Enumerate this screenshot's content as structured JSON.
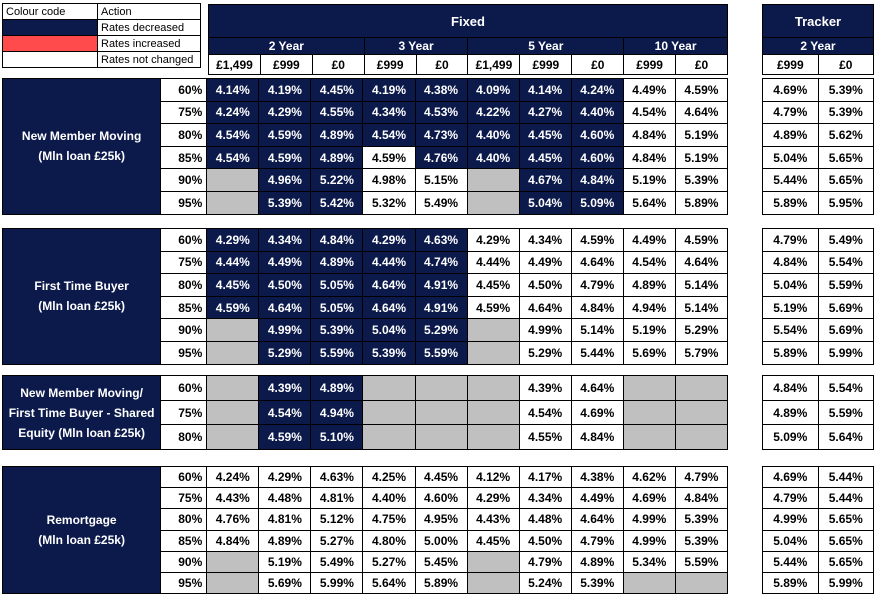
{
  "legend": {
    "header_left": "Colour code",
    "header_right": "Action",
    "rows": [
      {
        "color": "#0c1a4b",
        "label": "Rates decreased"
      },
      {
        "color": "#ff4b4b",
        "label": "Rates increased"
      },
      {
        "color": "#ffffff",
        "label": "Rates not changed"
      }
    ]
  },
  "headers": {
    "fixed": "Fixed",
    "tracker": "Tracker",
    "terms": [
      "2 Year",
      "3 Year",
      "5 Year",
      "10 Year"
    ],
    "tracker_term": "2 Year",
    "fees": [
      "£1,499",
      "£999",
      "£0",
      "£999",
      "£0",
      "£1,499",
      "£999",
      "£0",
      "£999",
      "£0"
    ],
    "tracker_fees": [
      "£999",
      "£0"
    ]
  },
  "colors": {
    "decreased": "#0c1a4b",
    "increased": "#ff4b4b",
    "unchanged": "#ffffff",
    "not_available": "#c0c0c0"
  },
  "sections": [
    {
      "label_lines": [
        "New Member Moving",
        "(Mln loan £25k)"
      ],
      "rows": [
        {
          "ltv": "60%",
          "fixed": [
            "4.14%",
            "4.19%",
            "4.45%",
            "4.19%",
            "4.38%",
            "4.09%",
            "4.14%",
            "4.24%",
            "4.49%",
            "4.59%"
          ],
          "tracker": [
            "4.69%",
            "5.39%"
          ],
          "shade": "NNNNNNNNWW"
        },
        {
          "ltv": "75%",
          "fixed": [
            "4.24%",
            "4.29%",
            "4.55%",
            "4.34%",
            "4.53%",
            "4.22%",
            "4.27%",
            "4.40%",
            "4.54%",
            "4.64%"
          ],
          "tracker": [
            "4.79%",
            "5.39%"
          ],
          "shade": "NNNNNNNNWW"
        },
        {
          "ltv": "80%",
          "fixed": [
            "4.54%",
            "4.59%",
            "4.89%",
            "4.54%",
            "4.73%",
            "4.40%",
            "4.45%",
            "4.60%",
            "4.84%",
            "5.19%"
          ],
          "tracker": [
            "4.89%",
            "5.62%"
          ],
          "shade": "NNNNNNNNWW"
        },
        {
          "ltv": "85%",
          "fixed": [
            "4.54%",
            "4.59%",
            "4.89%",
            "4.59%",
            "4.76%",
            "4.40%",
            "4.45%",
            "4.60%",
            "4.84%",
            "5.19%"
          ],
          "tracker": [
            "5.04%",
            "5.65%"
          ],
          "shade": "NNNWNNNNWW"
        },
        {
          "ltv": "90%",
          "fixed": [
            "",
            "4.96%",
            "5.22%",
            "4.98%",
            "5.15%",
            "",
            "4.67%",
            "4.84%",
            "5.19%",
            "5.39%"
          ],
          "tracker": [
            "5.44%",
            "5.65%"
          ],
          "shade": "GNNWWGNNWW"
        },
        {
          "ltv": "95%",
          "fixed": [
            "",
            "5.39%",
            "5.42%",
            "5.32%",
            "5.49%",
            "",
            "5.04%",
            "5.09%",
            "5.64%",
            "5.89%"
          ],
          "tracker": [
            "5.89%",
            "5.95%"
          ],
          "shade": "GNNWWGNNWW"
        }
      ]
    },
    {
      "label_lines": [
        "First Time Buyer",
        "(Mln loan £25k)"
      ],
      "rows": [
        {
          "ltv": "60%",
          "fixed": [
            "4.29%",
            "4.34%",
            "4.84%",
            "4.29%",
            "4.63%",
            "4.29%",
            "4.34%",
            "4.59%",
            "4.49%",
            "4.59%"
          ],
          "tracker": [
            "4.79%",
            "5.49%"
          ],
          "shade": "NNNNNWWWWW"
        },
        {
          "ltv": "75%",
          "fixed": [
            "4.44%",
            "4.49%",
            "4.89%",
            "4.44%",
            "4.74%",
            "4.44%",
            "4.49%",
            "4.64%",
            "4.54%",
            "4.64%"
          ],
          "tracker": [
            "4.84%",
            "5.54%"
          ],
          "shade": "NNNNNWWWWW"
        },
        {
          "ltv": "80%",
          "fixed": [
            "4.45%",
            "4.50%",
            "5.05%",
            "4.64%",
            "4.91%",
            "4.45%",
            "4.50%",
            "4.79%",
            "4.89%",
            "5.14%"
          ],
          "tracker": [
            "5.04%",
            "5.59%"
          ],
          "shade": "NNNNNWWWWW"
        },
        {
          "ltv": "85%",
          "fixed": [
            "4.59%",
            "4.64%",
            "5.05%",
            "4.64%",
            "4.91%",
            "4.59%",
            "4.64%",
            "4.84%",
            "4.94%",
            "5.14%"
          ],
          "tracker": [
            "5.19%",
            "5.69%"
          ],
          "shade": "NNNNNWWWWW"
        },
        {
          "ltv": "90%",
          "fixed": [
            "",
            "4.99%",
            "5.39%",
            "5.04%",
            "5.29%",
            "",
            "4.99%",
            "5.14%",
            "5.19%",
            "5.29%"
          ],
          "tracker": [
            "5.54%",
            "5.69%"
          ],
          "shade": "GNNNNGWWWW"
        },
        {
          "ltv": "95%",
          "fixed": [
            "",
            "5.29%",
            "5.59%",
            "5.39%",
            "5.59%",
            "",
            "5.29%",
            "5.44%",
            "5.69%",
            "5.79%"
          ],
          "tracker": [
            "5.89%",
            "5.99%"
          ],
          "shade": "GNNNNGWWWW"
        }
      ]
    },
    {
      "label_lines": [
        "New Member Moving/",
        "First Time Buyer - Shared",
        "Equity (Mln loan £25k)"
      ],
      "rows": [
        {
          "ltv": "60%",
          "fixed": [
            "",
            "4.39%",
            "4.89%",
            "",
            "",
            "",
            "4.39%",
            "4.64%",
            "",
            ""
          ],
          "tracker": [
            "4.84%",
            "5.54%"
          ],
          "shade": "GNNGGGWWGG"
        },
        {
          "ltv": "75%",
          "fixed": [
            "",
            "4.54%",
            "4.94%",
            "",
            "",
            "",
            "4.54%",
            "4.69%",
            "",
            ""
          ],
          "tracker": [
            "4.89%",
            "5.59%"
          ],
          "shade": "GNNGGGWWGG"
        },
        {
          "ltv": "80%",
          "fixed": [
            "",
            "4.59%",
            "5.10%",
            "",
            "",
            "",
            "4.55%",
            "4.84%",
            "",
            ""
          ],
          "tracker": [
            "5.09%",
            "5.64%"
          ],
          "shade": "GNNGGGWWGG"
        }
      ]
    },
    {
      "label_lines": [
        "Remortgage",
        "(Mln loan £25k)"
      ],
      "rows": [
        {
          "ltv": "60%",
          "fixed": [
            "4.24%",
            "4.29%",
            "4.63%",
            "4.25%",
            "4.45%",
            "4.12%",
            "4.17%",
            "4.38%",
            "4.62%",
            "4.79%"
          ],
          "tracker": [
            "4.69%",
            "5.44%"
          ],
          "shade": "WWWWWWWWWW"
        },
        {
          "ltv": "75%",
          "fixed": [
            "4.43%",
            "4.48%",
            "4.81%",
            "4.40%",
            "4.60%",
            "4.29%",
            "4.34%",
            "4.49%",
            "4.69%",
            "4.84%"
          ],
          "tracker": [
            "4.79%",
            "5.44%"
          ],
          "shade": "WWWWWWWWWW"
        },
        {
          "ltv": "80%",
          "fixed": [
            "4.76%",
            "4.81%",
            "5.12%",
            "4.75%",
            "4.95%",
            "4.43%",
            "4.48%",
            "4.64%",
            "4.99%",
            "5.39%"
          ],
          "tracker": [
            "4.99%",
            "5.65%"
          ],
          "shade": "WWWWWWWWWW"
        },
        {
          "ltv": "85%",
          "fixed": [
            "4.84%",
            "4.89%",
            "5.27%",
            "4.80%",
            "5.00%",
            "4.45%",
            "4.50%",
            "4.79%",
            "4.99%",
            "5.39%"
          ],
          "tracker": [
            "5.04%",
            "5.65%"
          ],
          "shade": "WWWWWWWWWW"
        },
        {
          "ltv": "90%",
          "fixed": [
            "",
            "5.19%",
            "5.49%",
            "5.27%",
            "5.45%",
            "",
            "4.79%",
            "4.89%",
            "5.34%",
            "5.59%"
          ],
          "tracker": [
            "5.44%",
            "5.65%"
          ],
          "shade": "GWWWWGWWWW"
        },
        {
          "ltv": "95%",
          "fixed": [
            "",
            "5.69%",
            "5.99%",
            "5.64%",
            "5.89%",
            "",
            "5.24%",
            "5.39%",
            "",
            ""
          ],
          "tracker": [
            "5.89%",
            "5.99%"
          ],
          "shade": "GWWWWGWWGG"
        }
      ]
    }
  ]
}
